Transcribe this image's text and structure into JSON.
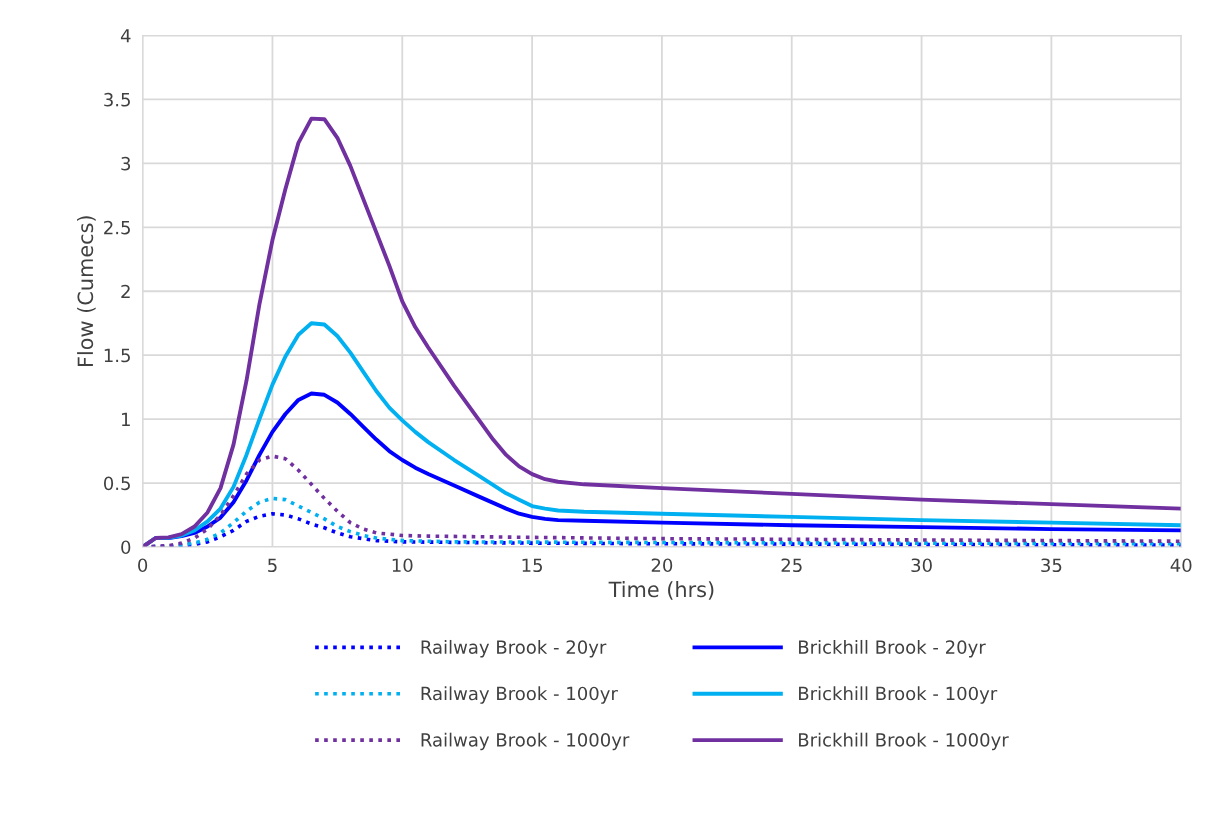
{
  "chart_data": {
    "type": "line",
    "xlabel": "Time (hrs)",
    "ylabel": "Flow (Cumecs)",
    "xlim": [
      0,
      40
    ],
    "xticks": [
      0,
      5,
      10,
      15,
      20,
      25,
      30,
      35,
      40
    ],
    "ylim": [
      0,
      4
    ],
    "yticks": [
      0,
      0.5,
      1,
      1.5,
      2,
      2.5,
      3,
      3.5,
      4
    ],
    "grid": true,
    "legend": "bottom",
    "marker": "none",
    "series": [
      {
        "name": "Railway Brook - 20yr",
        "color": "#0000ff",
        "line_style": "dotted",
        "x": [
          0,
          1,
          2,
          2.5,
          3,
          3.5,
          4,
          4.5,
          5,
          5.5,
          6,
          6.5,
          7,
          7.5,
          8,
          9,
          10,
          15,
          20,
          30,
          40
        ],
        "values": [
          0,
          0.005,
          0.02,
          0.04,
          0.08,
          0.13,
          0.2,
          0.24,
          0.26,
          0.25,
          0.22,
          0.18,
          0.15,
          0.11,
          0.08,
          0.05,
          0.04,
          0.03,
          0.025,
          0.02,
          0.015
        ]
      },
      {
        "name": "Brickhill Brook - 20yr",
        "color": "#0000ff",
        "line_style": "solid",
        "x": [
          0,
          0.5,
          1,
          1.5,
          2,
          2.5,
          3,
          3.5,
          4,
          4.5,
          5,
          5.5,
          6,
          6.5,
          7,
          7.5,
          8,
          8.5,
          9,
          9.5,
          10,
          10.5,
          11,
          12,
          13,
          14,
          14.5,
          15,
          15.5,
          16,
          17,
          20,
          25,
          30,
          35,
          40
        ],
        "values": [
          0,
          0.07,
          0.07,
          0.085,
          0.11,
          0.16,
          0.23,
          0.35,
          0.52,
          0.72,
          0.9,
          1.04,
          1.15,
          1.2,
          1.19,
          1.13,
          1.04,
          0.94,
          0.84,
          0.75,
          0.68,
          0.62,
          0.57,
          0.48,
          0.39,
          0.3,
          0.26,
          0.235,
          0.22,
          0.21,
          0.205,
          0.19,
          0.17,
          0.155,
          0.14,
          0.13
        ]
      },
      {
        "name": "Railway Brook - 100yr",
        "color": "#00b0f0",
        "line_style": "dotted",
        "x": [
          0,
          1,
          2,
          2.5,
          3,
          3.5,
          4,
          4.5,
          5,
          5.5,
          6,
          6.5,
          7,
          7.5,
          8,
          8.5,
          9,
          10,
          12,
          20,
          30,
          40
        ],
        "values": [
          0,
          0.005,
          0.03,
          0.06,
          0.11,
          0.19,
          0.28,
          0.35,
          0.38,
          0.37,
          0.32,
          0.27,
          0.22,
          0.16,
          0.12,
          0.09,
          0.07,
          0.05,
          0.04,
          0.035,
          0.03,
          0.025
        ]
      },
      {
        "name": "Brickhill Brook - 100yr",
        "color": "#00b0f0",
        "line_style": "solid",
        "x": [
          0,
          0.5,
          1,
          1.5,
          2,
          2.5,
          3,
          3.5,
          4,
          4.5,
          5,
          5.5,
          6,
          6.5,
          7,
          7.5,
          8,
          8.5,
          9,
          9.5,
          10,
          10.5,
          11,
          12,
          13,
          14,
          14.5,
          15,
          15.5,
          16,
          17,
          20,
          25,
          30,
          35,
          40
        ],
        "values": [
          0,
          0.07,
          0.072,
          0.09,
          0.13,
          0.2,
          0.3,
          0.47,
          0.72,
          1.0,
          1.27,
          1.49,
          1.66,
          1.75,
          1.74,
          1.65,
          1.52,
          1.37,
          1.22,
          1.09,
          0.99,
          0.9,
          0.82,
          0.68,
          0.55,
          0.42,
          0.37,
          0.32,
          0.3,
          0.285,
          0.275,
          0.26,
          0.235,
          0.21,
          0.19,
          0.17
        ]
      },
      {
        "name": "Railway Brook - 1000yr",
        "color": "#7030a0",
        "line_style": "dotted",
        "x": [
          0,
          1,
          1.5,
          2,
          2.5,
          3,
          3.5,
          4,
          4.5,
          5,
          5.5,
          6,
          6.5,
          7,
          7.5,
          8,
          8.5,
          9,
          10,
          11,
          15,
          20,
          30,
          40
        ],
        "values": [
          0,
          0.01,
          0.03,
          0.07,
          0.14,
          0.25,
          0.4,
          0.57,
          0.68,
          0.71,
          0.69,
          0.6,
          0.49,
          0.38,
          0.28,
          0.19,
          0.14,
          0.11,
          0.09,
          0.085,
          0.075,
          0.065,
          0.055,
          0.045
        ]
      },
      {
        "name": "Brickhill Brook - 1000yr",
        "color": "#7030a0",
        "line_style": "solid",
        "x": [
          0,
          0.5,
          1,
          1.5,
          2,
          2.5,
          3,
          3.5,
          4,
          4.5,
          5,
          5.5,
          6,
          6.5,
          7,
          7.5,
          8,
          8.5,
          9,
          9.5,
          10,
          10.5,
          11,
          12,
          13,
          13.5,
          14,
          14.5,
          15,
          15.5,
          16,
          17,
          20,
          25,
          30,
          35,
          40
        ],
        "values": [
          0,
          0.07,
          0.075,
          0.1,
          0.16,
          0.27,
          0.46,
          0.8,
          1.3,
          1.9,
          2.4,
          2.8,
          3.16,
          3.35,
          3.345,
          3.2,
          2.98,
          2.72,
          2.46,
          2.2,
          1.92,
          1.72,
          1.56,
          1.26,
          0.98,
          0.84,
          0.72,
          0.63,
          0.57,
          0.53,
          0.51,
          0.49,
          0.46,
          0.415,
          0.37,
          0.335,
          0.3
        ]
      }
    ]
  }
}
